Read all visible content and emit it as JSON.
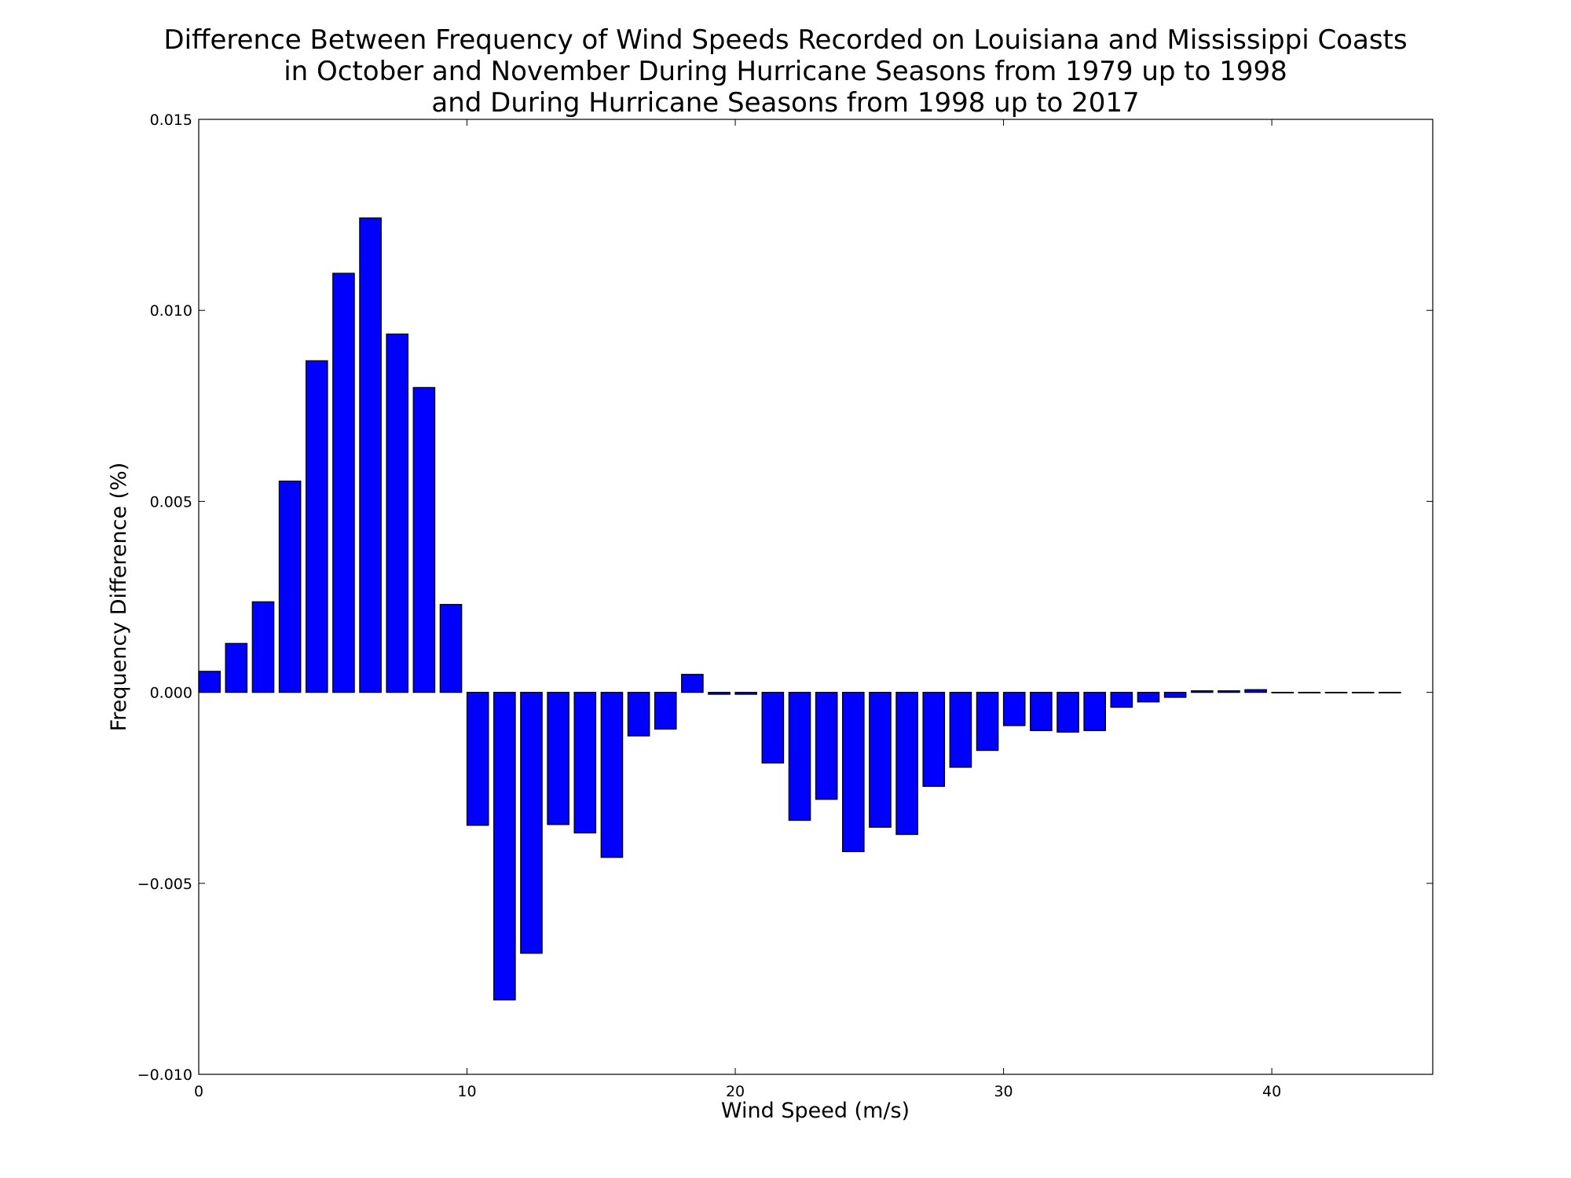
{
  "chart_data": {
    "type": "bar",
    "title": [
      "Difference Between Frequency of Wind Speeds Recorded on Louisiana and Mississippi Coasts",
      "in October and November During Hurricane Seasons from 1979 up to 1998",
      "and During Hurricane Seasons from 1998 up to 2017"
    ],
    "xlabel": "Wind Speed (m/s)",
    "ylabel": "Frequency Difference (%)",
    "xlim": [
      0,
      46
    ],
    "ylim": [
      -0.01,
      0.015
    ],
    "xticks": [
      0,
      10,
      20,
      30,
      40
    ],
    "xtick_labels": [
      "0",
      "10",
      "20",
      "30",
      "40"
    ],
    "yticks": [
      -0.01,
      -0.005,
      0.0,
      0.005,
      0.01,
      0.015
    ],
    "ytick_labels": [
      "−0.010",
      "−0.005",
      "0.000",
      "0.005",
      "0.010",
      "0.015"
    ],
    "bar_width": 0.8,
    "bar_color": "#0000ff",
    "edge_color": "#000000",
    "grid": false,
    "x": [
      0,
      1,
      2,
      3,
      4,
      5,
      6,
      7,
      8,
      9,
      10,
      11,
      12,
      13,
      14,
      15,
      16,
      17,
      18,
      19,
      20,
      21,
      22,
      23,
      24,
      25,
      26,
      27,
      28,
      29,
      30,
      31,
      32,
      33,
      34,
      35,
      36,
      37,
      38,
      39,
      40,
      41,
      42,
      43,
      44
    ],
    "values": [
      0.00055,
      0.00128,
      0.00237,
      0.00553,
      0.00868,
      0.01097,
      0.01242,
      0.00938,
      0.00798,
      0.0023,
      -0.00348,
      -0.00805,
      -0.00683,
      -0.00346,
      -0.00368,
      -0.00432,
      -0.00114,
      -0.00096,
      0.00047,
      -5e-05,
      -5e-05,
      -0.00185,
      -0.00335,
      -0.0028,
      -0.00417,
      -0.00353,
      -0.00372,
      -0.00246,
      -0.00196,
      -0.00152,
      -0.00087,
      -0.001,
      -0.00104,
      -0.001,
      -0.00039,
      -0.00025,
      -0.00013,
      4e-05,
      4e-05,
      7e-05,
      0.0,
      0.0,
      0.0,
      0.0,
      0.0
    ]
  }
}
